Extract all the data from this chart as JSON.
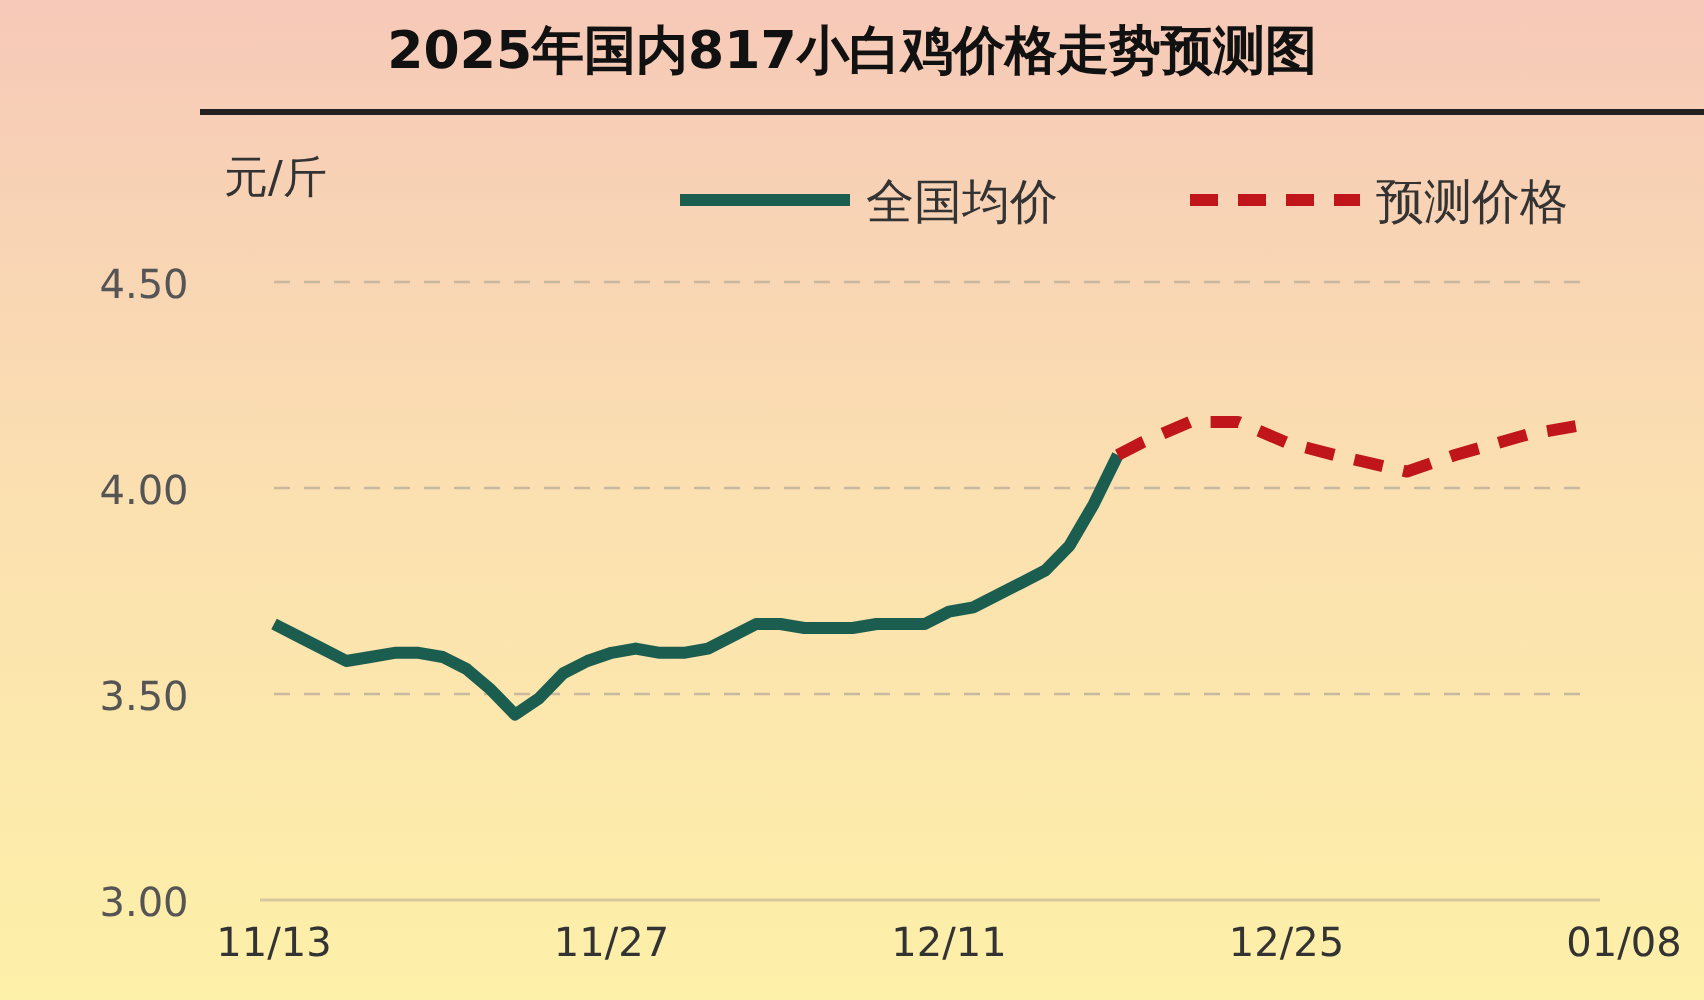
{
  "chart_data": {
    "type": "line",
    "title": "2025年国内817小白鸡价格走势预测图",
    "ylabel": "元/斤",
    "xlim": [
      "2025-11-13",
      "2026-01-08"
    ],
    "xticks": [
      {
        "value": "2025-11-13",
        "label": "11/13"
      },
      {
        "value": "2025-11-27",
        "label": "11/27"
      },
      {
        "value": "2025-12-11",
        "label": "12/11"
      },
      {
        "value": "2025-12-25",
        "label": "12/25"
      },
      {
        "value": "2026-01-08",
        "label": "01/08"
      }
    ],
    "ylim": [
      3,
      4.5
    ],
    "yticks": [
      {
        "value": 3,
        "label": "3.00"
      },
      {
        "value": 3.5,
        "label": "3.50"
      },
      {
        "value": 4,
        "label": "4.00"
      },
      {
        "value": 4.5,
        "label": "4.50"
      }
    ],
    "grid": "y",
    "legend": "top right",
    "marker": "none",
    "series": [
      {
        "name": "全国均价",
        "color": "#1b5e50",
        "line_style": "solid",
        "x": [
          "2025-11-13",
          "2025-11-14",
          "2025-11-15",
          "2025-11-16",
          "2025-11-17",
          "2025-11-18",
          "2025-11-19",
          "2025-11-20",
          "2025-11-21",
          "2025-11-22",
          "2025-11-23",
          "2025-11-24",
          "2025-11-25",
          "2025-11-26",
          "2025-11-27",
          "2025-11-28",
          "2025-11-29",
          "2025-11-30",
          "2025-12-01",
          "2025-12-02",
          "2025-12-03",
          "2025-12-04",
          "2025-12-05",
          "2025-12-06",
          "2025-12-07",
          "2025-12-08",
          "2025-12-09",
          "2025-12-10",
          "2025-12-11",
          "2025-12-12",
          "2025-12-13",
          "2025-12-14",
          "2025-12-15",
          "2025-12-16",
          "2025-12-17",
          "2025-12-18"
        ],
        "values": [
          3.67,
          3.64,
          3.61,
          3.58,
          3.59,
          3.6,
          3.6,
          3.59,
          3.56,
          3.51,
          3.45,
          3.49,
          3.55,
          3.58,
          3.6,
          3.61,
          3.6,
          3.6,
          3.61,
          3.64,
          3.67,
          3.67,
          3.66,
          3.66,
          3.66,
          3.67,
          3.67,
          3.67,
          3.7,
          3.71,
          3.74,
          3.77,
          3.8,
          3.86,
          3.96,
          4.08
        ]
      },
      {
        "name": "预测价格",
        "color": "#c0151a",
        "line_style": "dashed",
        "x": [
          "2025-12-18",
          "2025-12-19",
          "2025-12-21",
          "2025-12-23",
          "2025-12-25",
          "2025-12-27",
          "2025-12-30",
          "2026-01-01",
          "2026-01-04",
          "2026-01-06"
        ],
        "values": [
          4.08,
          4.11,
          4.16,
          4.16,
          4.11,
          4.08,
          4.04,
          4.08,
          4.13,
          4.15
        ]
      }
    ]
  }
}
